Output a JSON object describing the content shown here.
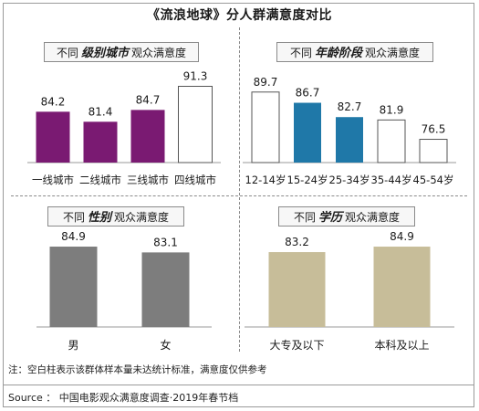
{
  "title": "《流浪地球》分人群满意度对比",
  "panels": {
    "city": {
      "prefix": "不同",
      "emph": "级别城市",
      "suffix": "观众满意度"
    },
    "age": {
      "prefix": "不同",
      "emph": "年龄阶段",
      "suffix": "观众满意度"
    },
    "gender": {
      "prefix": "不同",
      "emph": "性别",
      "suffix": "观众满意度"
    },
    "edu": {
      "prefix": "不同",
      "emph": "学历",
      "suffix": "观众满意度"
    }
  },
  "note": "注：空白柱表示该群体样本量未达统计标准，满意度仅供参考",
  "source": "Source ： 中国电影观众满意度调查·2019年春节档",
  "colors": {
    "city": "#7a1a72",
    "age": "#1f78a8",
    "gender": "#7d7d7d",
    "edu": "#c7bd99",
    "empty": "#ffffff"
  },
  "chart_data": [
    {
      "type": "bar",
      "id": "city",
      "categories": [
        "一线城市",
        "二线城市",
        "三线城市",
        "四线城市"
      ],
      "values": [
        84.2,
        81.4,
        84.7,
        91.3
      ],
      "hollow": [
        false,
        false,
        false,
        true
      ],
      "ylim": [
        70,
        95
      ]
    },
    {
      "type": "bar",
      "id": "age",
      "categories": [
        "12-14岁",
        "15-24岁",
        "25-34岁",
        "35-44岁",
        "45-54岁"
      ],
      "values": [
        89.7,
        86.7,
        82.7,
        81.9,
        76.5
      ],
      "hollow": [
        true,
        false,
        false,
        true,
        true
      ],
      "ylim": [
        70,
        95
      ]
    },
    {
      "type": "bar",
      "id": "gender",
      "categories": [
        "男",
        "女"
      ],
      "values": [
        84.9,
        83.1
      ],
      "hollow": [
        false,
        false
      ],
      "ylim": [
        60,
        90
      ]
    },
    {
      "type": "bar",
      "id": "edu",
      "categories": [
        "大专及以下",
        "本科及以上"
      ],
      "values": [
        83.2,
        84.9
      ],
      "hollow": [
        false,
        false
      ],
      "ylim": [
        60,
        90
      ]
    }
  ]
}
